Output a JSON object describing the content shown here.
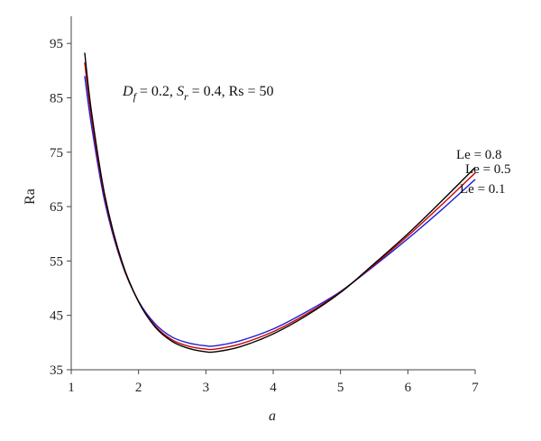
{
  "chart_data": {
    "type": "line",
    "title": "",
    "xlabel": "a",
    "ylabel": "Ra",
    "xlim": [
      1,
      7
    ],
    "ylim": [
      35,
      100
    ],
    "x_ticks": [
      "1",
      "2",
      "3",
      "4",
      "5",
      "6",
      "7"
    ],
    "y_ticks": [
      "35",
      "45",
      "55",
      "65",
      "75",
      "85",
      "95"
    ],
    "x_tick_values": [
      1,
      2,
      3,
      4,
      5,
      6,
      7
    ],
    "y_tick_values": [
      35,
      45,
      55,
      65,
      75,
      85,
      95
    ],
    "grid": false,
    "annotation": {
      "df_var": "D",
      "df_sub": "f",
      "df_val": " = 0.2, ",
      "sr_var": "S",
      "sr_sub": "r",
      "sr_val": " = 0.4, Rs = 50"
    },
    "series": [
      {
        "name": "Le = 0.8",
        "color": "#000000",
        "x": [
          1.2,
          1.3,
          1.5,
          1.75,
          2.0,
          2.25,
          2.5,
          2.75,
          3.0,
          3.14,
          3.5,
          4.0,
          4.5,
          5.0,
          5.5,
          6.0,
          6.5,
          7.0
        ],
        "y": [
          93.3,
          82.5,
          67.0,
          55.0,
          47.5,
          42.8,
          40.2,
          38.9,
          38.3,
          38.3,
          39.2,
          41.6,
          45.0,
          49.2,
          54.5,
          60.0,
          66.0,
          72.2
        ]
      },
      {
        "name": "Le = 0.5",
        "color": "#cc0000",
        "x": [
          1.2,
          1.3,
          1.5,
          1.75,
          2.0,
          2.25,
          2.5,
          2.75,
          3.0,
          3.14,
          3.5,
          4.0,
          4.5,
          5.0,
          5.5,
          6.0,
          6.5,
          7.0
        ],
        "y": [
          91.5,
          81.5,
          66.5,
          54.8,
          47.5,
          43.0,
          40.5,
          39.3,
          38.8,
          38.8,
          39.7,
          42.0,
          45.3,
          49.3,
          54.3,
          59.6,
          65.3,
          71.2
        ]
      },
      {
        "name": "Le = 0.1",
        "color": "#1f1fd6",
        "x": [
          1.2,
          1.3,
          1.5,
          1.75,
          2.0,
          2.25,
          2.5,
          2.75,
          3.0,
          3.14,
          3.5,
          4.0,
          4.5,
          5.0,
          5.5,
          6.0,
          6.5,
          7.0
        ],
        "y": [
          89.0,
          80.0,
          65.8,
          54.6,
          47.6,
          43.4,
          41.0,
          39.9,
          39.4,
          39.4,
          40.3,
          42.5,
          45.7,
          49.4,
          54.1,
          59.1,
          64.4,
          70.0
        ]
      }
    ]
  }
}
